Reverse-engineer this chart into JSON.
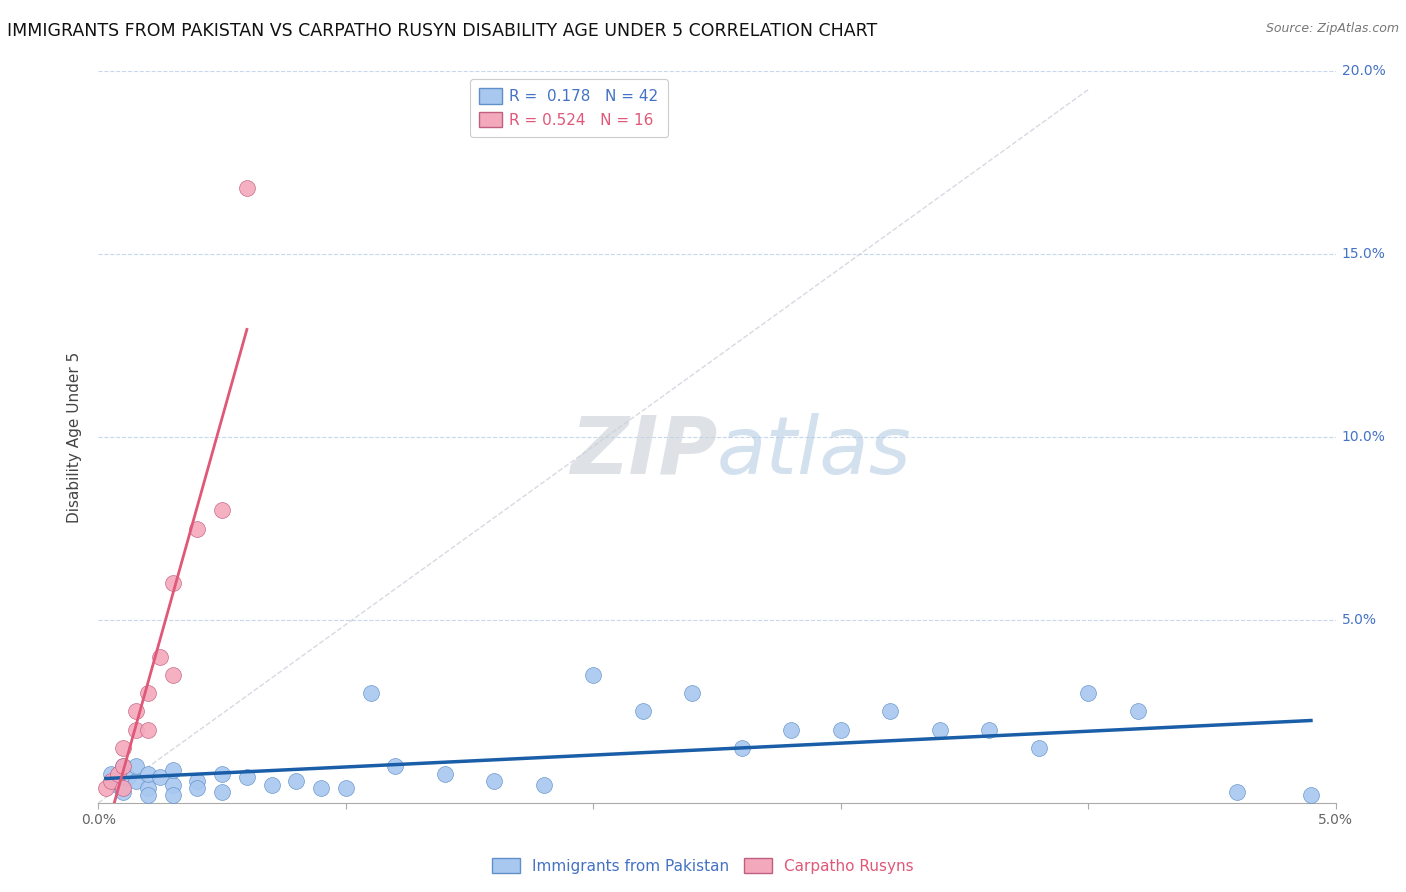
{
  "title": "IMMIGRANTS FROM PAKISTAN VS CARPATHO RUSYN DISABILITY AGE UNDER 5 CORRELATION CHART",
  "source_text": "Source: ZipAtlas.com",
  "ylabel": "Disability Age Under 5",
  "xlim": [
    0,
    0.05
  ],
  "ylim": [
    0,
    0.2
  ],
  "R_blue": 0.178,
  "N_blue": 42,
  "R_pink": 0.524,
  "N_pink": 16,
  "blue_color": "#A8C8F0",
  "pink_color": "#F4A8BC",
  "blue_line_color": "#1A5EA8",
  "pink_line_color": "#E05878",
  "diag_color": "#C8C8D8",
  "grid_color": "#C8D8EC",
  "legend_label_blue": "Immigrants from Pakistan",
  "legend_label_pink": "Carpatho Rusyns",
  "background_color": "#FFFFFF",
  "blue_scatter_x": [
    0.0005,
    0.0008,
    0.001,
    0.001,
    0.0012,
    0.0015,
    0.0015,
    0.002,
    0.002,
    0.002,
    0.0025,
    0.003,
    0.003,
    0.003,
    0.004,
    0.004,
    0.005,
    0.005,
    0.006,
    0.007,
    0.008,
    0.009,
    0.01,
    0.011,
    0.012,
    0.014,
    0.016,
    0.018,
    0.02,
    0.022,
    0.024,
    0.026,
    0.028,
    0.03,
    0.032,
    0.034,
    0.036,
    0.038,
    0.04,
    0.042,
    0.046,
    0.049
  ],
  "blue_scatter_y": [
    0.008,
    0.005,
    0.01,
    0.003,
    0.007,
    0.006,
    0.01,
    0.004,
    0.008,
    0.002,
    0.007,
    0.005,
    0.009,
    0.002,
    0.006,
    0.004,
    0.008,
    0.003,
    0.007,
    0.005,
    0.006,
    0.004,
    0.004,
    0.03,
    0.01,
    0.008,
    0.006,
    0.005,
    0.035,
    0.025,
    0.03,
    0.015,
    0.02,
    0.02,
    0.025,
    0.02,
    0.02,
    0.015,
    0.03,
    0.025,
    0.003,
    0.002
  ],
  "pink_scatter_x": [
    0.0003,
    0.0005,
    0.0008,
    0.001,
    0.001,
    0.001,
    0.0015,
    0.0015,
    0.002,
    0.002,
    0.0025,
    0.003,
    0.003,
    0.004,
    0.005,
    0.006
  ],
  "pink_scatter_y": [
    0.004,
    0.006,
    0.008,
    0.004,
    0.01,
    0.015,
    0.02,
    0.025,
    0.03,
    0.02,
    0.04,
    0.06,
    0.035,
    0.075,
    0.08,
    0.168
  ],
  "pink_trend_x": [
    0.0003,
    0.006
  ],
  "blue_trend_x": [
    0.0003,
    0.049
  ]
}
